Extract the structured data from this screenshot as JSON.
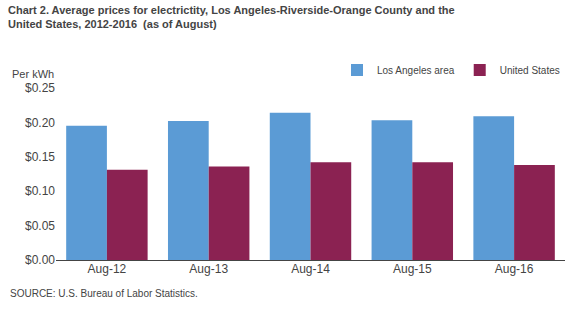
{
  "chart_data": {
    "type": "bar",
    "title": "Chart 2. Average prices for electrictity, Los Angeles-Riverside-Orange County and the\nUnited States, 2012-2016  (as of August)",
    "ylabel": "Per kWh",
    "annotations": [
      "SOURCE: U.S. Bureau of Labor Statistics."
    ],
    "categories": [
      "Aug-12",
      "Aug-13",
      "Aug-14",
      "Aug-15",
      "Aug-16"
    ],
    "series": [
      {
        "name": "Los Angeles area",
        "color": "#5B9BD5",
        "values": [
          0.195,
          0.202,
          0.214,
          0.203,
          0.209
        ]
      },
      {
        "name": "United States",
        "color": "#8B2252",
        "values": [
          0.131,
          0.136,
          0.142,
          0.142,
          0.138
        ]
      }
    ],
    "ylim": [
      0,
      0.25
    ],
    "yticks": [
      {
        "value": 0,
        "label": "$0.00"
      },
      {
        "value": 0.05,
        "label": "$0.05"
      },
      {
        "value": 0.1,
        "label": "$0.10"
      },
      {
        "value": 0.15,
        "label": "$0.15"
      },
      {
        "value": 0.2,
        "label": "$0.20"
      },
      {
        "value": 0.25,
        "label": "$0.25"
      }
    ],
    "grid": false,
    "legend": "upper right"
  }
}
